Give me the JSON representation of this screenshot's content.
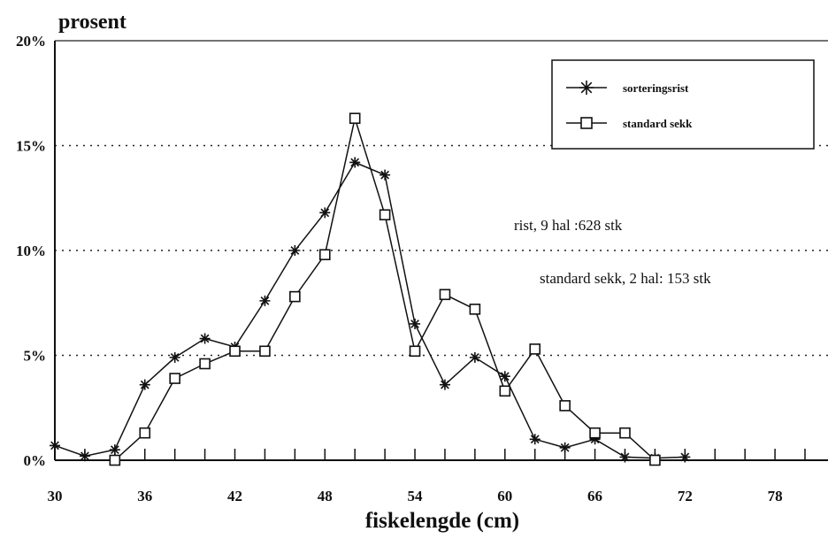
{
  "chart_data": {
    "type": "line",
    "ylabel": "prosent",
    "xlabel": "fiskelengde (cm)",
    "xlim": [
      30,
      80
    ],
    "ylim": [
      0,
      20
    ],
    "x_ticks": [
      30,
      36,
      42,
      48,
      54,
      60,
      66,
      72,
      78
    ],
    "y_ticks": [
      0,
      5,
      10,
      15,
      20
    ],
    "y_tick_labels": [
      "0%",
      "5%",
      "10%",
      "15%",
      "20%"
    ],
    "grid": "horizontal dotted",
    "legend_position": "top-right",
    "series": [
      {
        "name": "sorteringsrist",
        "marker": "asterisk",
        "color": "#111111",
        "x": [
          30,
          32,
          34,
          36,
          38,
          40,
          42,
          44,
          46,
          48,
          50,
          52,
          54,
          56,
          58,
          60,
          62,
          64,
          66,
          68,
          70,
          72
        ],
        "y": [
          0.7,
          0.2,
          0.5,
          3.6,
          4.9,
          5.8,
          5.4,
          7.6,
          10.0,
          11.8,
          14.2,
          13.6,
          6.5,
          3.6,
          4.9,
          4.0,
          1.0,
          0.6,
          1.0,
          0.15,
          0.1,
          0.15
        ]
      },
      {
        "name": "standard sekk",
        "marker": "square",
        "color": "#111111",
        "x": [
          34,
          36,
          38,
          40,
          42,
          44,
          46,
          48,
          50,
          52,
          54,
          56,
          58,
          60,
          62,
          64,
          66,
          68,
          70
        ],
        "y": [
          0.0,
          1.3,
          3.9,
          4.6,
          5.2,
          5.2,
          7.8,
          9.8,
          16.3,
          11.7,
          5.2,
          7.9,
          7.2,
          3.3,
          5.3,
          2.6,
          1.3,
          1.3,
          0.0
        ]
      }
    ],
    "annotations": [
      "rist, 9 hal :628 stk",
      "standard sekk, 2 hal: 153 stk"
    ]
  }
}
